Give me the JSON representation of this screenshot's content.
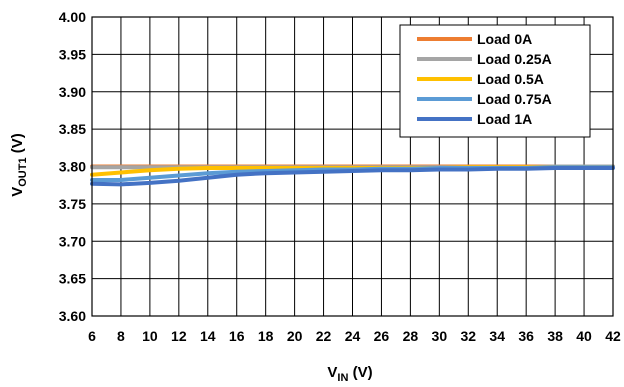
{
  "chart_data": {
    "type": "line",
    "xlabel_main": "V",
    "xlabel_sub": "IN",
    "xlabel_unit": " (V)",
    "ylabel_main": "V",
    "ylabel_sub": "OUT1",
    "ylabel_unit": " (V)",
    "xlim": [
      6,
      42
    ],
    "ylim": [
      3.6,
      4.0
    ],
    "x_ticks": [
      6,
      8,
      10,
      12,
      14,
      16,
      18,
      20,
      22,
      24,
      26,
      28,
      30,
      32,
      34,
      36,
      38,
      40,
      42
    ],
    "y_ticks": [
      "3.60",
      "3.65",
      "3.70",
      "3.75",
      "3.80",
      "3.85",
      "3.90",
      "3.95",
      "4.00"
    ],
    "grid": true,
    "legend_position": "top-right",
    "series": [
      {
        "name": "Load 0A",
        "color": "#ED7D31",
        "x": [
          6,
          8,
          10,
          12,
          14,
          16,
          18,
          20,
          22,
          24,
          26,
          28,
          30,
          32,
          34,
          36,
          38,
          40,
          42
        ],
        "y": [
          3.8,
          3.8,
          3.8,
          3.8,
          3.8,
          3.8,
          3.8,
          3.8,
          3.8,
          3.8,
          3.8,
          3.8,
          3.8,
          3.8,
          3.8,
          3.8,
          3.8,
          3.8,
          3.8
        ]
      },
      {
        "name": "Load 0.25A",
        "color": "#A5A5A5",
        "x": [
          6,
          8,
          10,
          12,
          14,
          16,
          18,
          20,
          22,
          24,
          26,
          28,
          30,
          32,
          34,
          36,
          38,
          40,
          42
        ],
        "y": [
          3.799,
          3.799,
          3.799,
          3.799,
          3.799,
          3.799,
          3.799,
          3.799,
          3.799,
          3.799,
          3.799,
          3.799,
          3.799,
          3.799,
          3.799,
          3.799,
          3.8,
          3.8,
          3.8
        ]
      },
      {
        "name": "Load 0.5A",
        "color": "#FFC000",
        "x": [
          6,
          8,
          10,
          12,
          14,
          16,
          18,
          20,
          22,
          24,
          26,
          28,
          30,
          32,
          34,
          36,
          38,
          40,
          42
        ],
        "y": [
          3.789,
          3.792,
          3.795,
          3.797,
          3.798,
          3.798,
          3.798,
          3.798,
          3.798,
          3.798,
          3.798,
          3.798,
          3.798,
          3.799,
          3.799,
          3.799,
          3.799,
          3.799,
          3.799
        ]
      },
      {
        "name": "Load 0.75A",
        "color": "#5B9BD5",
        "x": [
          6,
          8,
          10,
          12,
          14,
          16,
          18,
          20,
          22,
          24,
          26,
          28,
          30,
          32,
          34,
          36,
          38,
          40,
          42
        ],
        "y": [
          3.782,
          3.782,
          3.785,
          3.788,
          3.791,
          3.793,
          3.794,
          3.795,
          3.796,
          3.796,
          3.797,
          3.797,
          3.798,
          3.798,
          3.798,
          3.798,
          3.799,
          3.799,
          3.799
        ]
      },
      {
        "name": "Load 1A",
        "color": "#4472C4",
        "x": [
          6,
          8,
          10,
          12,
          14,
          16,
          18,
          20,
          22,
          24,
          26,
          28,
          30,
          32,
          34,
          36,
          38,
          40,
          42
        ],
        "y": [
          3.777,
          3.776,
          3.778,
          3.781,
          3.785,
          3.789,
          3.791,
          3.792,
          3.793,
          3.794,
          3.795,
          3.795,
          3.796,
          3.796,
          3.797,
          3.797,
          3.798,
          3.798,
          3.798
        ]
      }
    ]
  }
}
